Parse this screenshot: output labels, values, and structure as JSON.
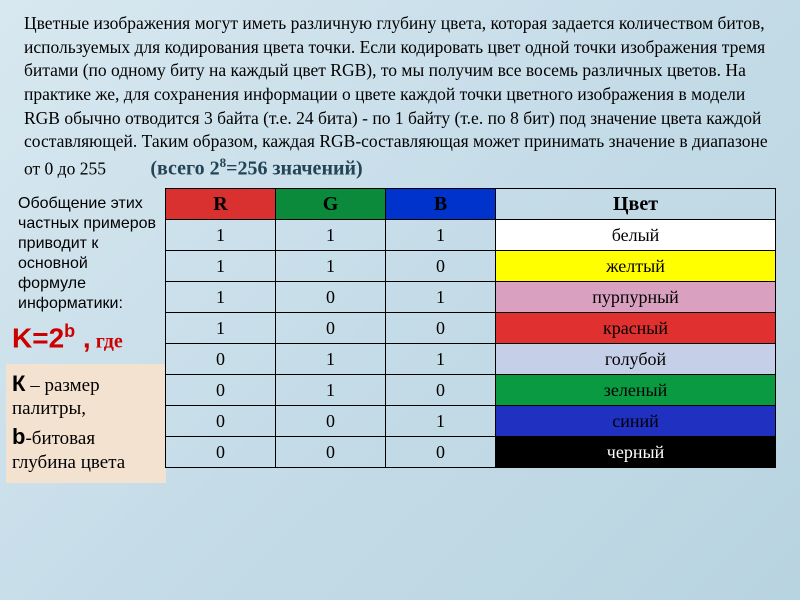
{
  "paragraph": "Цветные изображения могут иметь различную глубину цвета, которая задается количеством битов, используемых для кодирования цвета точки. Если кодировать цвет одной точки изображения тремя битами (по одному биту на каждый цвет RGB), то мы получим все восемь различных цветов. На практике же, для сохранения информации о цвете каждой точки цветного изображения в модели RGB обычно отводится 3 байта (т.е. 24 бита) - по 1 байту (т.е. по 8 бит) под значение цвета каждой составляющей. Таким образом, каждая RGB-составляющая может принимать значение в диапазоне от 0 до 255",
  "formula_note_pre": "(всего 2",
  "formula_note_exp": "8",
  "formula_note_post": "=256 значений)",
  "generalization": "Обобщение этих частных примеров приводит к основной формуле информатики:",
  "formula_base": "K=2",
  "formula_exp": "b",
  "formula_comma": " ,",
  "formula_where": " где",
  "legend_k_sym": "К",
  "legend_k_text": " – размер палитры,",
  "legend_b_sym": "b",
  "legend_b_text": "-битовая глубина цвета",
  "table": {
    "headers": {
      "r": "R",
      "g": "G",
      "b": "B",
      "name": "Цвет"
    },
    "header_bg": {
      "r": "#d93030",
      "g": "#0a8a3a",
      "b": "#0033cc",
      "name": "transparent"
    },
    "rows": [
      {
        "r": "1",
        "g": "1",
        "b": "1",
        "name": "белый",
        "bg": "#ffffff",
        "fg": "#000000"
      },
      {
        "r": "1",
        "g": "1",
        "b": "0",
        "name": "желтый",
        "bg": "#ffff00",
        "fg": "#000000"
      },
      {
        "r": "1",
        "g": "0",
        "b": "1",
        "name": "пурпурный",
        "bg": "#d9a0c0",
        "fg": "#000000"
      },
      {
        "r": "1",
        "g": "0",
        "b": "0",
        "name": "красный",
        "bg": "#e03030",
        "fg": "#000000"
      },
      {
        "r": "0",
        "g": "1",
        "b": "1",
        "name": "голубой",
        "bg": "#c5d0e8",
        "fg": "#000000"
      },
      {
        "r": "0",
        "g": "1",
        "b": "0",
        "name": "зеленый",
        "bg": "#0a9a42",
        "fg": "#000000"
      },
      {
        "r": "0",
        "g": "0",
        "b": "1",
        "name": "синий",
        "bg": "#2030c0",
        "fg": "#000000"
      },
      {
        "r": "0",
        "g": "0",
        "b": "0",
        "name": "черный",
        "bg": "#000000",
        "fg": "#ffffff"
      }
    ]
  }
}
